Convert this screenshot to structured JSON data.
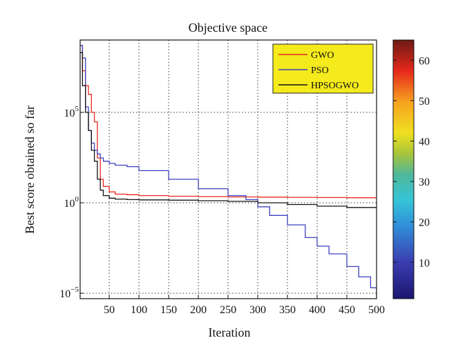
{
  "chart_data": {
    "type": "line",
    "title": "Objective space",
    "xlabel": "Iteration",
    "ylabel": "Best score obtained so far",
    "xlim": [
      1,
      500
    ],
    "yscale": "log",
    "ylim": [
      5e-06,
      1000000000.0
    ],
    "grid": true,
    "legend_position": "top-right",
    "x_ticks": [
      50,
      100,
      150,
      200,
      250,
      300,
      350,
      400,
      450,
      500
    ],
    "y_ticks": [
      {
        "value": 100000.0,
        "base": "10",
        "exp": "5"
      },
      {
        "value": 1,
        "base": "10",
        "exp": "0"
      },
      {
        "value": 1e-05,
        "base": "10",
        "exp": "−5"
      }
    ],
    "series": [
      {
        "name": "GWO",
        "color": "#e8281e",
        "x": [
          1,
          5,
          10,
          15,
          20,
          25,
          30,
          35,
          40,
          50,
          60,
          80,
          100,
          150,
          200,
          250,
          300,
          350,
          400,
          450,
          500
        ],
        "y": [
          500000000.0,
          20000000.0,
          3000000.0,
          1000000.0,
          100000.0,
          30000.0,
          300,
          20,
          8,
          4,
          3,
          2.8,
          2.5,
          2.3,
          2.2,
          2.1,
          2.05,
          2.0,
          1.95,
          1.9,
          1.9
        ]
      },
      {
        "name": "PSO",
        "color": "#3a3fbf",
        "x": [
          1,
          5,
          10,
          15,
          20,
          25,
          30,
          35,
          40,
          50,
          60,
          80,
          100,
          150,
          200,
          250,
          280,
          300,
          320,
          350,
          380,
          400,
          420,
          450,
          470,
          490,
          500
        ],
        "y": [
          500000000.0,
          100000000.0,
          200000.0,
          10000.0,
          2000.0,
          800,
          500,
          300,
          200,
          150,
          120,
          100,
          60,
          20,
          6,
          2.5,
          1.5,
          0.6,
          0.2,
          0.06,
          0.012,
          0.004,
          0.0015,
          0.0003,
          8e-05,
          2e-05,
          8e-06
        ]
      },
      {
        "name": "HPSOGWO",
        "color": "#111111",
        "x": [
          1,
          5,
          10,
          15,
          20,
          25,
          30,
          35,
          40,
          50,
          60,
          80,
          100,
          150,
          200,
          250,
          300,
          350,
          400,
          450,
          500
        ],
        "y": [
          200000000.0,
          3000000.0,
          100000.0,
          10000.0,
          800,
          200,
          20,
          5,
          2.5,
          1.8,
          1.6,
          1.5,
          1.45,
          1.4,
          1.3,
          1.2,
          1.0,
          0.8,
          0.65,
          0.55,
          0.5
        ]
      }
    ],
    "colorbar": {
      "range": [
        1,
        65
      ],
      "ticks": [
        10,
        20,
        30,
        40,
        50,
        60
      ]
    }
  }
}
